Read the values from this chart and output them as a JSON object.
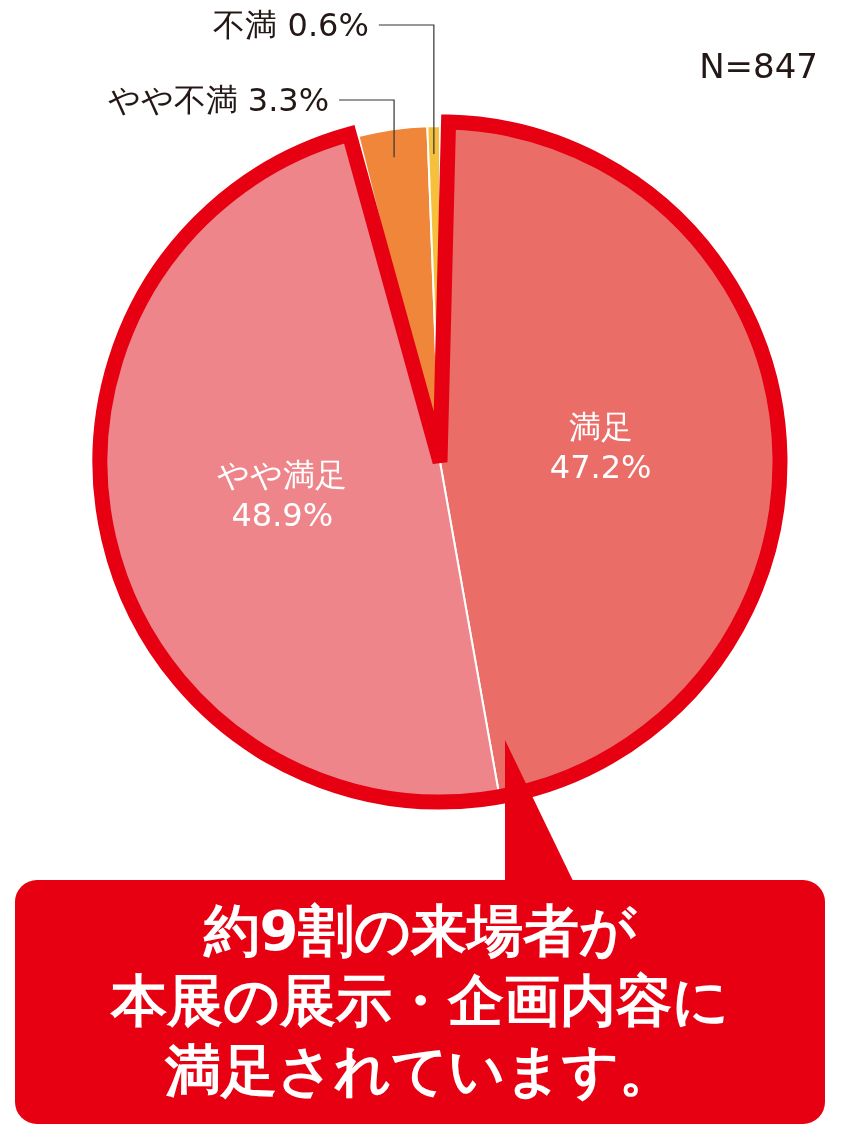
{
  "chart_data": {
    "type": "pie",
    "categories": [
      "満足",
      "やや満足",
      "やや不満",
      "不満"
    ],
    "values": [
      47.2,
      48.9,
      3.3,
      0.6
    ],
    "colors": [
      "#eb6d68",
      "#ee858b",
      "#ef863a",
      "#f6bf3c"
    ],
    "value_labels": [
      "47.2%",
      "48.9%",
      "3.3%",
      "0.6%"
    ],
    "annotations": [
      "N=847",
      "約9割の来場者が",
      "本展の展示・企画内容に",
      "満足されています。"
    ]
  }
}
